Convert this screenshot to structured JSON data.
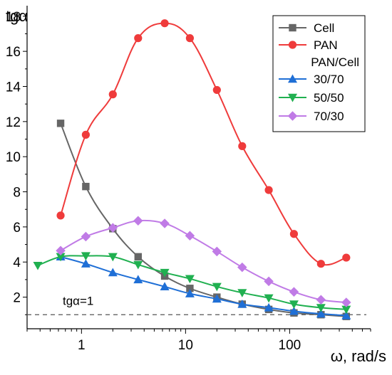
{
  "chart_data": {
    "type": "line",
    "ylabel": "tgα",
    "xlabel": "ω, rad/s",
    "xscale": "log",
    "xlim": [
      0.3,
      600
    ],
    "ylim": [
      0.2,
      18.6
    ],
    "x_ticks": [
      1,
      10,
      100
    ],
    "x_tick_labels": [
      "1",
      "10",
      "100"
    ],
    "y_ticks": [
      2,
      4,
      6,
      8,
      10,
      12,
      14,
      16,
      18
    ],
    "y_tick_labels": [
      "2",
      "4",
      "6",
      "8",
      "10",
      "12",
      "14",
      "16",
      "18"
    ],
    "reference_line": {
      "y": 1,
      "label": "tgα=1",
      "style": "dashed"
    },
    "legend_position": "top-right",
    "legend_subtitle": "PAN/Cell",
    "series": [
      {
        "name": "Cell",
        "color": "#666666",
        "marker": "square",
        "x": [
          0.63,
          1.1,
          2.0,
          3.5,
          6.3,
          11,
          20,
          35,
          63,
          110,
          200,
          350
        ],
        "y": [
          11.9,
          8.3,
          5.9,
          4.3,
          3.2,
          2.5,
          2.0,
          1.6,
          1.3,
          1.1,
          1.0,
          0.9
        ]
      },
      {
        "name": "PAN",
        "color": "#ef3b3b",
        "marker": "circle",
        "x": [
          0.63,
          1.1,
          2.0,
          3.5,
          6.3,
          11,
          20,
          35,
          63,
          110,
          200,
          350
        ],
        "y": [
          6.65,
          11.25,
          13.55,
          16.75,
          17.6,
          16.75,
          13.8,
          10.6,
          8.1,
          5.6,
          3.9,
          4.25
        ]
      },
      {
        "name": "30/70",
        "color": "#1f6fd6",
        "marker": "triangle-up",
        "x": [
          0.63,
          1.1,
          2.0,
          3.5,
          6.3,
          11,
          20,
          35,
          63,
          110,
          200,
          350
        ],
        "y": [
          4.3,
          3.9,
          3.4,
          3.0,
          2.6,
          2.2,
          1.9,
          1.6,
          1.4,
          1.2,
          1.05,
          0.95
        ]
      },
      {
        "name": "50/50",
        "color": "#20b050",
        "marker": "triangle-down",
        "x": [
          0.38,
          0.63,
          1.1,
          2.0,
          3.5,
          6.3,
          11,
          20,
          35,
          63,
          110,
          200,
          350
        ],
        "y": [
          3.8,
          4.3,
          4.35,
          4.3,
          3.85,
          3.4,
          3.05,
          2.6,
          2.25,
          1.95,
          1.6,
          1.4,
          1.3
        ]
      },
      {
        "name": "70/30",
        "color": "#c07be6",
        "marker": "diamond",
        "x": [
          0.63,
          1.1,
          2.0,
          3.5,
          6.3,
          11,
          20,
          35,
          63,
          110,
          200,
          350
        ],
        "y": [
          4.65,
          5.45,
          5.95,
          6.35,
          6.2,
          5.5,
          4.6,
          3.7,
          2.9,
          2.3,
          1.85,
          1.7
        ]
      }
    ]
  }
}
